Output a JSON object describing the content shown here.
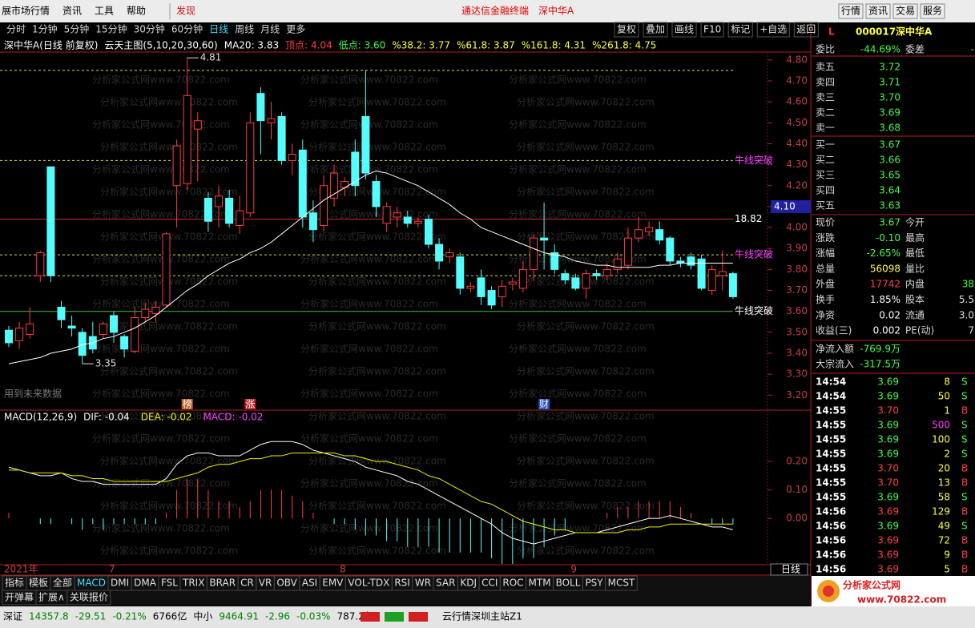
{
  "menu": {
    "items": [
      "展市场行情",
      "资讯",
      "工具",
      "帮助"
    ],
    "discover": "发现",
    "center": "通达信金融终端",
    "stock": "深中华A",
    "right": [
      "行情",
      "资讯",
      "交易",
      "服务"
    ]
  },
  "toolbar": {
    "periods": [
      "分时",
      "1分钟",
      "5分钟",
      "15分钟",
      "30分钟",
      "60分钟",
      "日线",
      "周线",
      "月线",
      "更多"
    ],
    "active": 6,
    "actions": [
      "复权",
      "叠加",
      "画线",
      "F10",
      "标记",
      "+自选",
      "返回"
    ]
  },
  "info": [
    "深中华A(日线 前复权)",
    "云天主图(5,10,20,30,60)",
    "MA20: 3.83",
    "顶点: 4.04",
    "低点: 3.60",
    "%38.2: 3.77",
    "%61.8: 3.87",
    "%161.8: 4.31",
    "%261.8: 4.75"
  ],
  "watermark": "分析家公式网www.70822.com",
  "chart_data": [
    {
      "type": "candlestick",
      "categories": [
        "2021年",
        null,
        null,
        null,
        null,
        null,
        null,
        null,
        null,
        null,
        "7",
        null,
        null,
        null,
        null,
        null,
        null,
        null,
        null,
        null,
        null,
        null,
        null,
        null,
        null,
        null,
        null,
        null,
        null,
        null,
        null,
        null,
        "8",
        null,
        null,
        null,
        null,
        null,
        null,
        null,
        null,
        null,
        null,
        null,
        null,
        null,
        null,
        null,
        null,
        null,
        null,
        null,
        null,
        null,
        "9",
        null,
        null,
        null,
        null,
        null,
        null,
        null,
        null,
        null,
        null,
        null,
        null,
        null,
        null,
        null
      ],
      "open": [
        3.51,
        3.46,
        3.49,
        3.77,
        4.29,
        3.62,
        3.53,
        3.5,
        3.48,
        3.49,
        3.58,
        3.48,
        3.41,
        3.57,
        3.59,
        3.63,
        4.2,
        4.21,
        4.47,
        4.14,
        4.1,
        4.14,
        4.01,
        4.07,
        4.64,
        4.5,
        4.53,
        4.32,
        4.37,
        4.07,
        4.01,
        4.14,
        4.19,
        4.36,
        4.53,
        4.22,
        4.02,
        4.05,
        4.05,
        4.02,
        4.04,
        3.92,
        3.86,
        3.86,
        3.71,
        3.76,
        3.7,
        3.67,
        3.73,
        3.71,
        3.8,
        3.95,
        3.88,
        3.78,
        3.76,
        3.71,
        3.78,
        3.77,
        3.8,
        3.82,
        3.95,
        3.98,
        3.99,
        3.95,
        3.84,
        3.86,
        3.85,
        3.7,
        3.77,
        3.78
      ],
      "high": [
        3.53,
        3.55,
        3.62,
        3.89,
        4.29,
        3.65,
        3.58,
        3.52,
        3.55,
        3.55,
        3.6,
        3.49,
        3.62,
        3.64,
        3.65,
        3.98,
        4.42,
        4.81,
        4.55,
        4.17,
        4.2,
        4.18,
        4.15,
        4.55,
        4.67,
        4.6,
        4.55,
        4.4,
        4.42,
        4.13,
        4.25,
        4.3,
        4.24,
        4.42,
        4.75,
        4.25,
        4.12,
        4.1,
        4.08,
        4.05,
        4.06,
        3.95,
        3.9,
        3.88,
        3.74,
        3.8,
        3.72,
        3.75,
        3.76,
        3.84,
        3.97,
        4.12,
        3.92,
        3.8,
        3.78,
        3.8,
        3.8,
        3.83,
        3.88,
        4.0,
        4.05,
        4.03,
        4.03,
        3.96,
        3.86,
        3.88,
        3.87,
        3.82,
        3.89,
        3.79
      ],
      "low": [
        3.43,
        3.42,
        3.47,
        3.74,
        3.74,
        3.52,
        3.48,
        3.35,
        3.4,
        3.47,
        3.45,
        3.38,
        3.4,
        3.55,
        3.55,
        3.62,
        4.0,
        4.18,
        4.22,
        3.98,
        4.0,
        4.0,
        3.97,
        4.05,
        4.35,
        4.42,
        4.3,
        4.25,
        4.0,
        3.93,
        3.98,
        4.1,
        4.15,
        4.15,
        4.23,
        4.05,
        3.98,
        4.0,
        4.0,
        4.0,
        3.9,
        3.8,
        3.83,
        3.68,
        3.69,
        3.63,
        3.61,
        3.62,
        3.7,
        3.69,
        3.75,
        3.8,
        3.78,
        3.73,
        3.7,
        3.66,
        3.75,
        3.75,
        3.78,
        3.8,
        3.93,
        3.96,
        3.92,
        3.82,
        3.81,
        3.8,
        3.7,
        3.68,
        3.7,
        3.66
      ],
      "close": [
        3.45,
        3.52,
        3.54,
        3.88,
        3.77,
        3.56,
        3.52,
        3.39,
        3.42,
        3.54,
        3.5,
        3.42,
        3.57,
        3.61,
        3.62,
        3.97,
        4.39,
        4.63,
        4.51,
        4.03,
        4.15,
        4.02,
        4.08,
        4.5,
        4.51,
        4.52,
        4.32,
        4.35,
        4.05,
        3.99,
        4.2,
        4.26,
        4.22,
        4.2,
        4.26,
        4.1,
        4.1,
        4.07,
        4.02,
        4.03,
        3.92,
        3.84,
        3.88,
        3.71,
        3.72,
        3.67,
        3.63,
        3.72,
        3.74,
        3.8,
        3.95,
        3.94,
        3.8,
        3.75,
        3.71,
        3.78,
        3.77,
        3.8,
        3.85,
        3.95,
        3.99,
        4.0,
        3.94,
        3.84,
        3.83,
        3.82,
        3.71,
        3.8,
        3.79,
        3.67
      ],
      "ma": {
        "color": "#ffffff",
        "values": [
          3.35,
          3.36,
          3.37,
          3.38,
          3.4,
          3.41,
          3.42,
          3.44,
          3.45,
          3.47,
          3.48,
          3.5,
          3.52,
          3.55,
          3.58,
          3.62,
          3.66,
          3.7,
          3.73,
          3.77,
          3.8,
          3.83,
          3.85,
          3.88,
          3.9,
          3.93,
          3.97,
          4.01,
          4.05,
          4.09,
          4.13,
          4.16,
          4.19,
          4.22,
          4.25,
          4.27,
          4.26,
          4.24,
          4.22,
          4.2,
          4.17,
          4.14,
          4.11,
          4.07,
          4.04,
          4.0,
          3.98,
          3.96,
          3.94,
          3.92,
          3.9,
          3.88,
          3.87,
          3.86,
          3.84,
          3.83,
          3.82,
          3.82,
          3.81,
          3.81,
          3.81,
          3.81,
          3.82,
          3.82,
          3.83,
          3.83,
          3.83,
          3.83,
          3.83,
          3.83
        ]
      },
      "up_color": "#ff3c3c",
      "down_color": "#54fcfc",
      "ylim": [
        3.14,
        4.83
      ],
      "yticks": [
        {
          "value": 4.8,
          "label": "4.80"
        },
        {
          "value": 4.7,
          "label": "4.70"
        },
        {
          "value": 4.6,
          "label": "4.60"
        },
        {
          "value": 4.5,
          "label": "4.50"
        },
        {
          "value": 4.4,
          "label": "4.40"
        },
        {
          "value": 4.3,
          "label": "4.30"
        },
        {
          "value": 4.2,
          "label": "4.20"
        },
        {
          "value": 4.1,
          "label": "4.10"
        },
        {
          "value": 4,
          "label": "4.00"
        },
        {
          "value": 3.9,
          "label": "3.90"
        },
        {
          "value": 3.8,
          "label": "3.80"
        },
        {
          "value": 3.7,
          "label": "3.70"
        },
        {
          "value": 3.6,
          "label": "3.60"
        },
        {
          "value": 3.5,
          "label": "3.50"
        },
        {
          "value": 3.4,
          "label": "3.40"
        },
        {
          "value": 3.3,
          "label": "3.30"
        },
        {
          "value": 3.2,
          "label": "3.20"
        }
      ],
      "levels": [
        {
          "value": 4.75,
          "color": "#e0e040",
          "style": "dashed"
        },
        {
          "value": 4.32,
          "color": "#e0e040",
          "style": "dashed",
          "label": "牛线突破",
          "label_color": "#ff40ff"
        },
        {
          "value": 4.04,
          "color": "#d03030",
          "style": "solid",
          "label": "18.82",
          "label_color": "#ffffff"
        },
        {
          "value": 3.87,
          "color": "#e0e040",
          "style": "dashed",
          "label": "牛线突破",
          "label_color": "#ff40ff"
        },
        {
          "value": 3.77,
          "color": "#e0e040",
          "style": "dashed"
        },
        {
          "value": 3.6,
          "color": "#40c040",
          "style": "solid",
          "label": "牛线突破",
          "label_color": "#ffffff"
        }
      ],
      "extremes": {
        "high": {
          "index": 17,
          "value": 4.81
        },
        "low": {
          "index": 7,
          "value": 3.35
        }
      },
      "events": [
        {
          "index": 17,
          "label": "榜",
          "color": "#c06020"
        },
        {
          "index": 23,
          "label": "涨",
          "color": "#c02020"
        },
        {
          "index": 51,
          "label": "财",
          "color": "#2050c0"
        }
      ],
      "note": "用到未来数据",
      "cursor": {
        "value": 4.1,
        "label": "4.10"
      },
      "period": "日线"
    },
    {
      "type": "macd",
      "title": "MACD(12,26,9)",
      "legend": [
        "DIF: -0.04",
        "DEA: -0.02",
        "MACD: -0.02"
      ],
      "series": [
        {
          "color": "#ffffff",
          "values": [
            0.18,
            0.17,
            0.16,
            0.15,
            0.15,
            0.16,
            0.14,
            0.13,
            0.13,
            0.12,
            0.12,
            0.12,
            0.12,
            0.12,
            0.12,
            0.14,
            0.19,
            0.22,
            0.23,
            0.23,
            0.22,
            0.22,
            0.22,
            0.24,
            0.26,
            0.27,
            0.27,
            0.27,
            0.26,
            0.24,
            0.23,
            0.22,
            0.21,
            0.2,
            0.18,
            0.17,
            0.16,
            0.15,
            0.13,
            0.12,
            0.1,
            0.08,
            0.06,
            0.04,
            0.02,
            0.0,
            -0.02,
            -0.05,
            -0.07,
            -0.08,
            -0.09,
            -0.08,
            -0.07,
            -0.06,
            -0.05,
            -0.05,
            -0.05,
            -0.04,
            -0.03,
            -0.02,
            -0.01,
            0.0,
            0.0,
            0.01,
            0.0,
            -0.01,
            -0.02,
            -0.03,
            -0.03,
            -0.04
          ]
        },
        {
          "color": "#f0f000",
          "values": [
            0.17,
            0.17,
            0.16,
            0.16,
            0.16,
            0.16,
            0.15,
            0.15,
            0.14,
            0.14,
            0.13,
            0.13,
            0.13,
            0.13,
            0.13,
            0.13,
            0.14,
            0.15,
            0.16,
            0.18,
            0.19,
            0.19,
            0.2,
            0.21,
            0.21,
            0.22,
            0.22,
            0.23,
            0.23,
            0.23,
            0.23,
            0.23,
            0.22,
            0.22,
            0.21,
            0.2,
            0.2,
            0.19,
            0.18,
            0.17,
            0.15,
            0.14,
            0.12,
            0.1,
            0.08,
            0.06,
            0.05,
            0.03,
            0.01,
            -0.01,
            -0.02,
            -0.03,
            -0.04,
            -0.04,
            -0.05,
            -0.05,
            -0.05,
            -0.05,
            -0.05,
            -0.04,
            -0.04,
            -0.03,
            -0.03,
            -0.02,
            -0.02,
            -0.02,
            -0.02,
            -0.02,
            -0.02,
            -0.02
          ]
        }
      ],
      "bars": {
        "values": [
          0.02,
          0,
          0,
          -0.02,
          -0.02,
          0,
          -0.02,
          -0.04,
          -0.02,
          -0.04,
          -0.02,
          -0.02,
          -0.02,
          -0.02,
          -0.02,
          0.02,
          0.1,
          0.14,
          0.14,
          0.1,
          0.06,
          0.06,
          0.04,
          0.06,
          0.1,
          0.1,
          0.1,
          0.08,
          0.06,
          0.02,
          0,
          -0.02,
          -0.02,
          -0.04,
          -0.06,
          -0.06,
          -0.08,
          -0.08,
          -0.1,
          -0.1,
          -0.1,
          -0.12,
          -0.12,
          -0.12,
          -0.12,
          -0.12,
          -0.14,
          -0.16,
          -0.16,
          -0.14,
          -0.14,
          -0.1,
          -0.06,
          -0.04,
          0,
          0,
          0,
          0.02,
          0.04,
          0.04,
          0.06,
          0.06,
          0.06,
          0.06,
          0.04,
          0.02,
          0,
          -0.02,
          -0.02,
          -0.02
        ]
      },
      "ylim": [
        -0.16,
        0.33
      ],
      "yticks": [
        {
          "value": 0.2,
          "label": "0.20"
        },
        {
          "value": 0.1,
          "label": "0.10"
        },
        {
          "value": 0,
          "label": "0.00"
        }
      ]
    }
  ],
  "quote": {
    "mark": "L",
    "code": "000017",
    "name": "深中华A",
    "wb": [
      "委比",
      "-44.69%",
      "委差",
      "-"
    ],
    "sells": [
      [
        "卖五",
        "3.72"
      ],
      [
        "卖四",
        "3.71"
      ],
      [
        "卖三",
        "3.70"
      ],
      [
        "卖二",
        "3.69"
      ],
      [
        "卖一",
        "3.68"
      ]
    ],
    "buys": [
      [
        "买一",
        "3.67"
      ],
      [
        "买二",
        "3.66"
      ],
      [
        "买三",
        "3.65"
      ],
      [
        "买四",
        "3.64"
      ],
      [
        "买五",
        "3.63"
      ]
    ],
    "stats": [
      [
        "现价",
        "3.67",
        "今开"
      ],
      [
        "涨跌",
        "-0.10",
        "最高"
      ],
      [
        "涨幅",
        "-2.65%",
        "最低"
      ],
      [
        "总量",
        "56098",
        "量比"
      ],
      [
        "外盘",
        "17742",
        "内盘",
        "38"
      ],
      [
        "换手",
        "1.85%",
        "股本",
        "5.5"
      ],
      [
        "净资",
        "0.02",
        "流通",
        "3.0"
      ],
      [
        "收益(三)",
        "0.002",
        "PE(动)",
        "7"
      ]
    ],
    "flows": [
      [
        "净流入额",
        "-769.9万"
      ],
      [
        "大宗流入",
        "-317.5万"
      ]
    ],
    "ticks": [
      [
        "14:54",
        "3.69",
        "8",
        "S"
      ],
      [
        "14:54",
        "3.69",
        "50",
        "S"
      ],
      [
        "14:55",
        "3.70",
        "1",
        "B"
      ],
      [
        "14:55",
        "3.69",
        "500",
        "S"
      ],
      [
        "14:55",
        "3.69",
        "100",
        "S"
      ],
      [
        "14:55",
        "3.69",
        "2",
        "S"
      ],
      [
        "14:55",
        "3.70",
        "20",
        "B"
      ],
      [
        "14:55",
        "3.70",
        "13",
        "B"
      ],
      [
        "14:55",
        "3.69",
        "58",
        "S"
      ],
      [
        "14:56",
        "3.69",
        "129",
        "B"
      ],
      [
        "14:56",
        "3.69",
        "49",
        "S"
      ],
      [
        "14:56",
        "3.69",
        "72",
        "B"
      ],
      [
        "14:56",
        "3.69",
        "9",
        "B"
      ],
      [
        "14:56",
        "3.69",
        "5",
        "B"
      ]
    ]
  },
  "tabs": [
    "指标",
    "模板",
    "全部",
    "MACD",
    "DMI",
    "DMA",
    "FSL",
    "TRIX",
    "BRAR",
    "CR",
    "VR",
    "OBV",
    "ASI",
    "EMV",
    "VOL-TDX",
    "RSI",
    "WR",
    "SAR",
    "KDJ",
    "CCI",
    "ROC",
    "MTM",
    "BOLL",
    "PSY",
    "MCST"
  ],
  "active_tab": 3,
  "tabs2": [
    "开弹幕",
    "扩展∧",
    "关联报价"
  ],
  "status": [
    "深证",
    "14357.8",
    "-29.51",
    "-0.21%",
    "6766亿",
    "中小",
    "9464.91",
    "-2.96",
    "-0.03%",
    "787.2亿"
  ],
  "server": "云行情深圳主站Z1",
  "logo": {
    "name": "分析家公式网",
    "url": "www.70822.com"
  }
}
